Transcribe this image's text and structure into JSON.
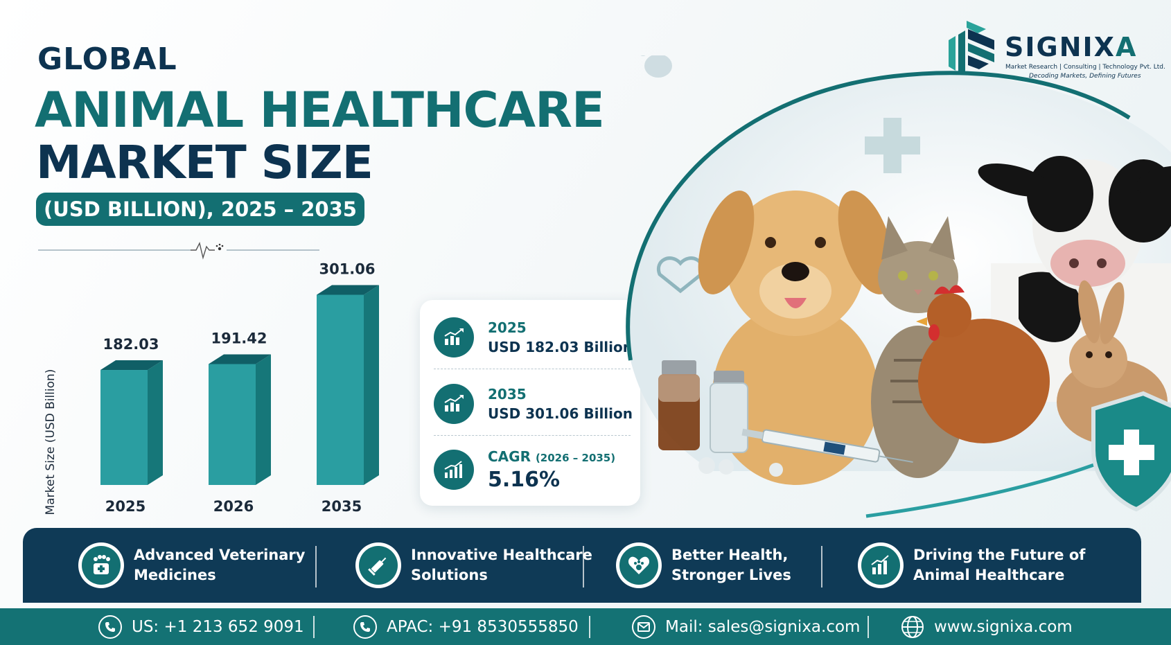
{
  "title": {
    "line1": "GLOBAL",
    "line2": "ANIMAL HEALTHCARE",
    "line3": "MARKET SIZE",
    "pill": "(USD BILLION), 2025 – 2035"
  },
  "brand": {
    "name_main": "SIGNIX",
    "name_accent": "A",
    "tagline": "Market Research | Consulting | Technology Pvt. Ltd.",
    "slogan": "Decoding Markets, Defining Futures"
  },
  "chart_data": {
    "type": "bar",
    "categories": [
      "2025",
      "2026",
      "2035"
    ],
    "values": [
      182.03,
      191.42,
      301.06
    ],
    "value_labels": [
      "182.03",
      "191.42",
      "301.06"
    ],
    "ylabel": "Market Size (USD Billion)",
    "xlabel": "",
    "title": "",
    "grid": false,
    "colors": {
      "bar_front": "#2a9ea1",
      "bar_side": "#167779",
      "bar_top": "#105f66"
    }
  },
  "stats": [
    {
      "year": "2025",
      "value": "USD 182.03 Billion",
      "icon": "growth-chart-icon"
    },
    {
      "year": "2035",
      "value": "USD 301.06 Billion",
      "icon": "growth-chart-icon"
    },
    {
      "label": "CAGR",
      "period": "(2026 – 2035)",
      "value": "5.16%",
      "icon": "trend-up-icon"
    }
  ],
  "features": [
    {
      "line1": "Advanced Veterinary",
      "line2": "Medicines",
      "icon": "paw-medical-icon"
    },
    {
      "line1": "Innovative Healthcare",
      "line2": "Solutions",
      "icon": "syringe-icon"
    },
    {
      "line1": "Better Health,",
      "line2": "Stronger Lives",
      "icon": "heart-paw-icon"
    },
    {
      "line1": "Driving the Future of",
      "line2": "Animal Healthcare",
      "icon": "growth-chart-icon"
    }
  ],
  "contacts": [
    {
      "text": "US: +1 213 652 9091",
      "icon": "phone-icon"
    },
    {
      "text": "APAC: +91 8530555850",
      "icon": "phone-icon"
    },
    {
      "text": "Mail: sales@signixa.com",
      "icon": "mail-icon"
    },
    {
      "text": "www.signixa.com",
      "icon": "globe-icon"
    }
  ],
  "colors": {
    "teal": "#136f72",
    "navy": "#0d3350",
    "band": "#0f3a56",
    "footer": "#147274"
  }
}
